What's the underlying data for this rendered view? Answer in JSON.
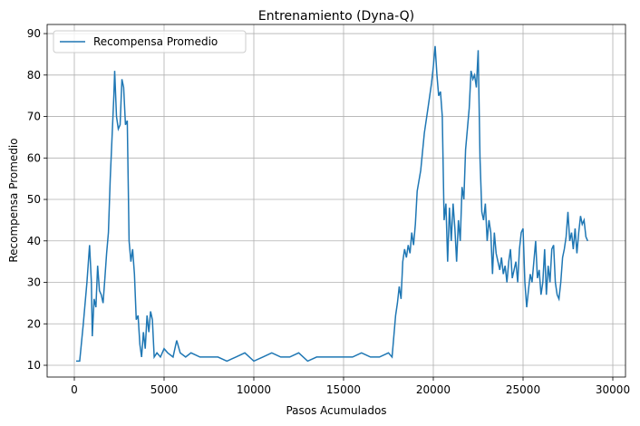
{
  "chart_data": {
    "type": "line",
    "title": "Entrenamiento (Dyna-Q)",
    "x_label": "Pasos Acumulados",
    "y_label": "Recompensa Promedio",
    "x": [
      100,
      300,
      500,
      700,
      850,
      950,
      1000,
      1100,
      1200,
      1300,
      1400,
      1500,
      1600,
      1700,
      1800,
      1900,
      2000,
      2100,
      2200,
      2250,
      2350,
      2450,
      2550,
      2650,
      2750,
      2850,
      2950,
      3050,
      3150,
      3250,
      3350,
      3450,
      3550,
      3650,
      3750,
      3850,
      3950,
      4050,
      4150,
      4250,
      4350,
      4450,
      4600,
      4800,
      5000,
      5200,
      5500,
      5700,
      5900,
      6200,
      6500,
      7000,
      7500,
      8000,
      8500,
      9000,
      9500,
      10000,
      10500,
      11000,
      11500,
      12000,
      12500,
      13000,
      13500,
      14000,
      14500,
      15000,
      15500,
      16000,
      16500,
      17000,
      17500,
      17700,
      17900,
      18000,
      18100,
      18200,
      18300,
      18400,
      18500,
      18600,
      18700,
      18800,
      18900,
      19000,
      19100,
      19300,
      19500,
      19700,
      19900,
      20000,
      20100,
      20200,
      20300,
      20400,
      20500,
      20600,
      20700,
      20800,
      20900,
      21000,
      21100,
      21200,
      21300,
      21400,
      21500,
      21600,
      21700,
      21800,
      21900,
      22000,
      22100,
      22200,
      22300,
      22400,
      22500,
      22600,
      22700,
      22800,
      22900,
      23000,
      23100,
      23200,
      23300,
      23400,
      23500,
      23600,
      23700,
      23800,
      23900,
      24000,
      24100,
      24200,
      24300,
      24400,
      24500,
      24600,
      24700,
      24800,
      24900,
      25000,
      25100,
      25200,
      25300,
      25400,
      25500,
      25600,
      25700,
      25800,
      25900,
      26000,
      26100,
      26200,
      26300,
      26400,
      26500,
      26600,
      26700,
      26800,
      26900,
      27000,
      27100,
      27200,
      27300,
      27400,
      27500,
      27600,
      27700,
      27800,
      27900,
      28000,
      28100,
      28200,
      28300,
      28400,
      28500,
      28600
    ],
    "series": [
      {
        "name": "Recompensa Promedio",
        "color": "#1f77b4",
        "values": [
          11,
          11,
          20,
          30,
          39,
          30,
          17,
          26,
          24,
          34,
          28,
          27,
          25,
          31,
          37,
          42,
          55,
          65,
          75,
          81,
          70,
          67,
          68,
          79,
          77,
          68,
          69,
          40,
          35,
          38,
          32,
          21,
          22,
          15,
          12,
          18,
          14,
          22,
          18,
          23,
          21,
          12,
          13,
          12,
          14,
          13,
          12,
          16,
          13,
          12,
          13,
          12,
          12,
          12,
          11,
          12,
          13,
          11,
          12,
          13,
          12,
          12,
          13,
          11,
          12,
          12,
          12,
          12,
          12,
          13,
          12,
          12,
          13,
          12,
          22,
          25,
          29,
          26,
          35,
          38,
          36,
          39,
          37,
          42,
          39,
          44,
          52,
          57,
          66,
          72,
          78,
          82,
          87,
          80,
          75,
          76,
          70,
          45,
          49,
          35,
          48,
          40,
          49,
          43,
          35,
          45,
          40,
          53,
          50,
          62,
          67,
          72,
          81,
          79,
          80,
          77,
          86,
          60,
          47,
          45,
          49,
          40,
          45,
          42,
          32,
          42,
          37,
          35,
          33,
          36,
          32,
          34,
          30,
          35,
          38,
          31,
          33,
          35,
          30,
          38,
          42,
          43,
          30,
          24,
          28,
          32,
          30,
          35,
          40,
          31,
          33,
          27,
          30,
          38,
          27,
          34,
          30,
          38,
          39,
          30,
          27,
          26,
          30,
          36,
          38,
          41,
          47,
          40,
          42,
          38,
          43,
          37,
          42,
          46,
          44,
          45,
          41,
          40
        ]
      }
    ],
    "xlim": [
      -1515,
      30707
    ],
    "ylim": [
      7.16,
      92.2
    ],
    "xticks": [
      0,
      5000,
      10000,
      15000,
      20000,
      25000,
      30000
    ],
    "yticks": [
      10,
      20,
      30,
      40,
      50,
      60,
      70,
      80,
      90
    ],
    "grid": true,
    "legend": "upper-left"
  }
}
